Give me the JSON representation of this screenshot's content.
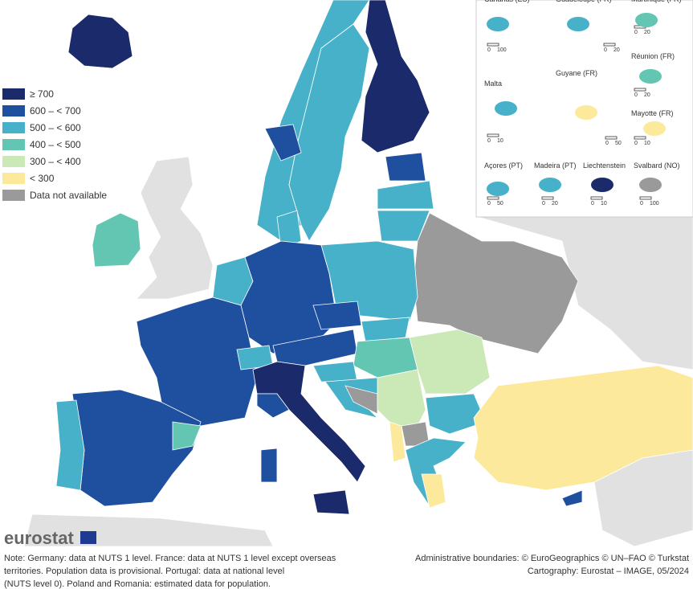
{
  "legend": {
    "items": [
      {
        "label": "≥ 700",
        "color": "#1b2a6b"
      },
      {
        "label": "600 – < 700",
        "color": "#1f4f9f"
      },
      {
        "label": "500 – < 600",
        "color": "#46b1c9"
      },
      {
        "label": "400 – < 500",
        "color": "#62c6b2"
      },
      {
        "label": "300 – < 400",
        "color": "#cbe8b7"
      },
      {
        "label": "< 300",
        "color": "#fde99c"
      },
      {
        "label": "Data not available",
        "color": "#9a9a9a"
      }
    ]
  },
  "insets": [
    {
      "title": "Canarias (ES)",
      "scale": [
        0,
        100
      ]
    },
    {
      "title": "Guadeloupe (FR)",
      "scale": [
        0,
        20
      ]
    },
    {
      "title": "Martinique (FR)",
      "scale": [
        0,
        20
      ]
    },
    {
      "title": "Réunion (FR)",
      "scale": [
        0,
        20
      ]
    },
    {
      "title": "Malta",
      "scale": [
        0,
        10
      ]
    },
    {
      "title": "Guyane (FR)",
      "scale": [
        0,
        50
      ]
    },
    {
      "title": "Mayotte (FR)",
      "scale": [
        0,
        10
      ]
    },
    {
      "title": "Açores (PT)",
      "scale": [
        0,
        50
      ]
    },
    {
      "title": "Madeira (PT)",
      "scale": [
        0,
        20
      ]
    },
    {
      "title": "Liechtenstein",
      "scale": [
        0,
        10
      ]
    },
    {
      "title": "Svalbard (NO)",
      "scale": [
        0,
        100
      ]
    }
  ],
  "logo": "eurostat",
  "note": [
    "Note: Germany: data at NUTS 1 level. France: data at NUTS 1 level except overseas",
    "territories. Population data is provisional. Portugal: data at national level",
    "(NUTS level 0). Poland and Romania: estimated data for population."
  ],
  "credits": [
    "Administrative boundaries: © EuroGeographics © UN–FAO © Turkstat",
    "Cartography: Eurostat – IMAGE, 05/2024"
  ]
}
